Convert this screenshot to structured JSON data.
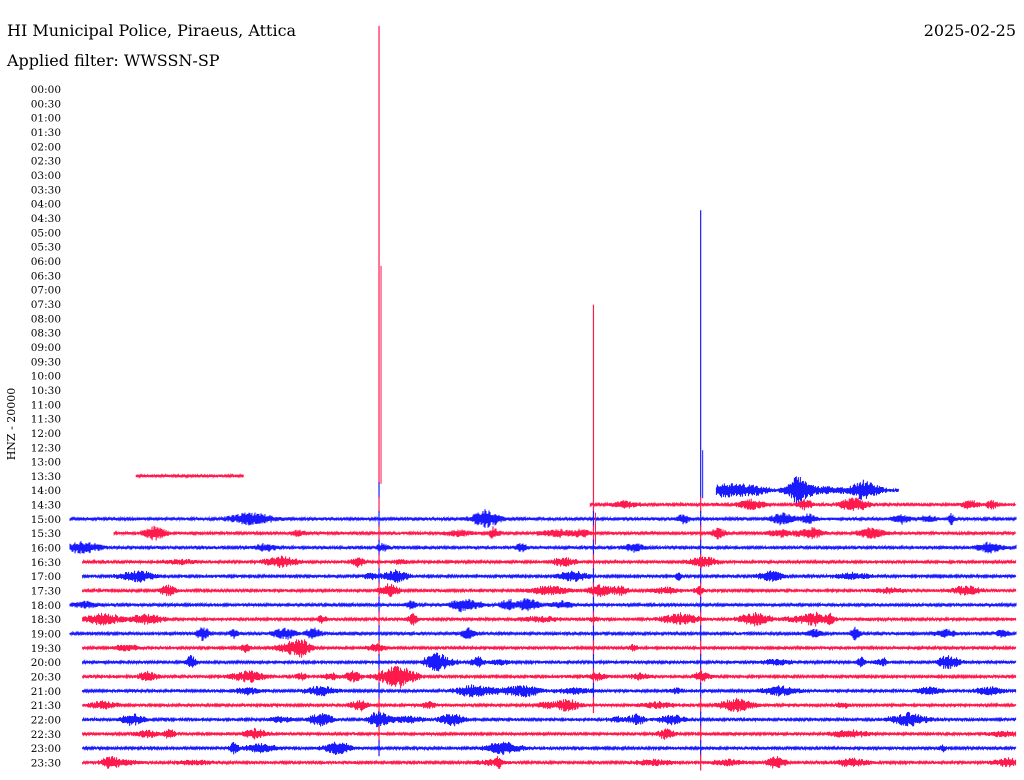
{
  "header": {
    "station": "HI Municipal Police, Piraeus, Attica",
    "date": "2025-02-25",
    "filter": "Applied filter: WWSSN-SP"
  },
  "chart_data": {
    "type": "line",
    "title": "HI Municipal Police, Piraeus, Attica",
    "date": "2025-02-25",
    "filter": "WWSSN-SP",
    "ylabel": "HNZ - 20000",
    "y_tick_labels": [
      "00:00",
      "00:30",
      "01:00",
      "01:30",
      "02:00",
      "02:30",
      "03:00",
      "03:30",
      "04:00",
      "04:30",
      "05:00",
      "05:30",
      "06:00",
      "06:30",
      "07:00",
      "07:30",
      "08:00",
      "08:30",
      "09:00",
      "09:30",
      "10:00",
      "10:30",
      "11:00",
      "11:30",
      "12:00",
      "12:30",
      "13:00",
      "13:30",
      "14:00",
      "14:30",
      "15:00",
      "15:30",
      "16:00",
      "16:30",
      "17:00",
      "17:30",
      "18:00",
      "18:30",
      "19:00",
      "19:30",
      "20:00",
      "20:30",
      "21:00",
      "21:30",
      "22:00",
      "22:30",
      "23:00",
      "23:30"
    ],
    "line_duration_minutes": 30,
    "trace_colors": [
      "#1a1aff",
      "#ff1a4d"
    ],
    "traces": [
      {
        "row": 27,
        "start_min": 2.1,
        "end_min": 5.5,
        "quiet": true
      },
      {
        "row": 28,
        "start_min": 20.5,
        "end_min": 26.3
      },
      {
        "row": 29,
        "start_min": 16.5,
        "end_min": 30.0
      },
      {
        "row": 30,
        "start_min": 0.0,
        "end_min": 30.0
      },
      {
        "row": 31,
        "start_min": 1.4,
        "end_min": 30.0
      },
      {
        "row": 32,
        "start_min": 0.0,
        "end_min": 30.0
      },
      {
        "row": 33,
        "start_min": 0.4,
        "end_min": 30.0
      },
      {
        "row": 34,
        "start_min": 0.4,
        "end_min": 30.0
      },
      {
        "row": 35,
        "start_min": 0.4,
        "end_min": 30.0
      },
      {
        "row": 36,
        "start_min": 0.0,
        "end_min": 30.0
      },
      {
        "row": 37,
        "start_min": 0.4,
        "end_min": 30.0
      },
      {
        "row": 38,
        "start_min": 0.0,
        "end_min": 30.0
      },
      {
        "row": 39,
        "start_min": 0.4,
        "end_min": 30.0
      },
      {
        "row": 40,
        "start_min": 0.4,
        "end_min": 30.0
      },
      {
        "row": 41,
        "start_min": 0.4,
        "end_min": 30.0
      },
      {
        "row": 42,
        "start_min": 0.4,
        "end_min": 30.0
      },
      {
        "row": 43,
        "start_min": 0.4,
        "end_min": 30.0
      },
      {
        "row": 44,
        "start_min": 0.4,
        "end_min": 30.0
      },
      {
        "row": 45,
        "start_min": 0.4,
        "end_min": 30.0
      },
      {
        "row": 46,
        "start_min": 0.4,
        "end_min": 30.0
      },
      {
        "row": 47,
        "start_min": 0.4,
        "end_min": 30.0
      }
    ],
    "events": [
      {
        "minute": 9.8,
        "first_row": 27,
        "last_row": 46
      },
      {
        "minute": 16.6,
        "first_row": 29,
        "last_row": 43
      },
      {
        "minute": 20.0,
        "first_row": 28,
        "last_row": 47
      }
    ]
  }
}
